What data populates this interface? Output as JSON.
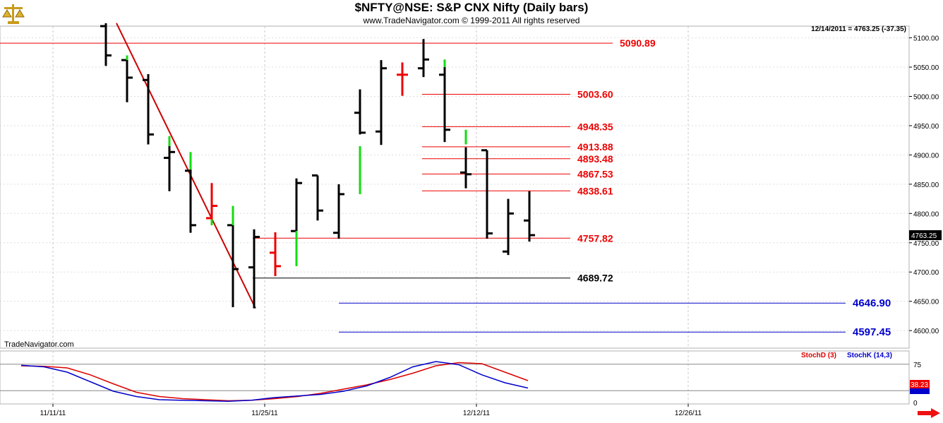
{
  "header": {
    "title": "$NFTY@NSE:  S&P CNX Nifty  (Daily bars)",
    "copyright": "www.TradeNavigator.com © 1999-2011 All rights reserved",
    "readout": "12/14/2011 = 4763.25 (-37.35)",
    "watermark": "TradeNavigator.com"
  },
  "chart_data": [
    {
      "type": "ohlc",
      "title": "$NFTY@NSE:  S&P CNX Nifty  (Daily bars)",
      "ylim": [
        4570,
        5120
      ],
      "y_ticks": [
        "5100.00",
        "5050.00",
        "5000.00",
        "4950.00",
        "4900.00",
        "4850.00",
        "4800.00",
        "4750.00",
        "4700.00",
        "4650.00",
        "4600.00"
      ],
      "y_tick_values": [
        5100,
        5050,
        5000,
        4950,
        4900,
        4850,
        4800,
        4750,
        4700,
        4650,
        4600
      ],
      "x_ticks": [
        "11/11/11",
        "11/25/11",
        "12/12/11",
        "12/26/11"
      ],
      "last_price_label": "4763.25",
      "bars": [
        {
          "o": 5120,
          "h": 5125,
          "l": 5052,
          "c": 5070,
          "color": "#000000"
        },
        {
          "o": 5062,
          "h": 5070,
          "l": 4990,
          "c": 5032,
          "color": "#000000"
        },
        {
          "o": 5028,
          "h": 5038,
          "l": 4918,
          "c": 4935,
          "color": "#000000"
        },
        {
          "o": 4895,
          "h": 4932,
          "l": 4838,
          "c": 4905,
          "color": "#000000"
        },
        {
          "o": 4873,
          "h": 4875,
          "l": 4767,
          "c": 4780,
          "color": "#000000"
        },
        {
          "o": 4792,
          "h": 4852,
          "l": 4780,
          "c": 4813,
          "color": "#ee0000"
        },
        {
          "o": 4780,
          "h": 4780,
          "l": 4640,
          "c": 4705,
          "color": "#000000"
        },
        {
          "o": 4708,
          "h": 4773,
          "l": 4638,
          "c": 4760,
          "color": "#000000"
        },
        {
          "o": 4733,
          "h": 4768,
          "l": 4693,
          "c": 4710,
          "color": "#ee0000"
        },
        {
          "o": 4770,
          "h": 4860,
          "l": 4770,
          "c": 4852,
          "color": "#000000"
        },
        {
          "o": 4865,
          "h": 4865,
          "l": 4788,
          "c": 4805,
          "color": "#000000"
        },
        {
          "o": 4767,
          "h": 4850,
          "l": 4757,
          "c": 4833,
          "color": "#000000"
        },
        {
          "o": 4972,
          "h": 5012,
          "l": 4935,
          "c": 4938,
          "color": "#000000"
        },
        {
          "o": 4940,
          "h": 5062,
          "l": 4917,
          "c": 5048,
          "color": "#000000"
        },
        {
          "o": 5037,
          "h": 5058,
          "l": 5001,
          "c": 5037,
          "color": "#ee0000"
        },
        {
          "o": 5048,
          "h": 5098,
          "l": 5033,
          "c": 5063,
          "color": "#000000"
        },
        {
          "o": 5037,
          "h": 5050,
          "l": 4922,
          "c": 4943,
          "color": "#000000"
        },
        {
          "o": 4870,
          "h": 4913,
          "l": 4843,
          "c": 4867,
          "color": "#000000"
        },
        {
          "o": 4908,
          "h": 4908,
          "l": 4757,
          "c": 4766,
          "color": "#000000"
        },
        {
          "o": 4735,
          "h": 4825,
          "l": 4729,
          "c": 4800,
          "color": "#000000"
        },
        {
          "o": 4788,
          "h": 4838,
          "l": 4752,
          "c": 4763,
          "color": "#000000"
        }
      ],
      "green_segments": [
        {
          "bar": 1,
          "from": 5062,
          "to": 5070
        },
        {
          "bar": 3,
          "from": 4915,
          "to": 4932
        },
        {
          "bar": 4,
          "from": 4875,
          "to": 4905
        },
        {
          "bar": 5,
          "from": 4780,
          "to": 4790
        },
        {
          "bar": 6,
          "from": 4780,
          "to": 4813
        },
        {
          "bar": 9,
          "from": 4710,
          "to": 4770
        },
        {
          "bar": 12,
          "from": 4833,
          "to": 4915
        },
        {
          "bar": 16,
          "from": 5050,
          "to": 5063
        },
        {
          "bar": 17,
          "from": 4918,
          "to": 4943
        }
      ],
      "levels": [
        {
          "value": 5090.89,
          "label": "5090.89",
          "color": "#ee0000",
          "span": "full"
        },
        {
          "value": 5003.6,
          "label": "5003.60",
          "color": "#ee0000",
          "span": "retracement"
        },
        {
          "value": 4948.35,
          "label": "4948.35",
          "color": "#ee0000",
          "span": "retracement"
        },
        {
          "value": 4913.88,
          "label": "4913.88",
          "color": "#ee0000",
          "span": "retracement"
        },
        {
          "value": 4893.48,
          "label": "4893.48",
          "color": "#ee0000",
          "span": "retracement"
        },
        {
          "value": 4867.53,
          "label": "4867.53",
          "color": "#ee0000",
          "span": "retracement"
        },
        {
          "value": 4838.61,
          "label": "4838.61",
          "color": "#ee0000",
          "span": "retracement"
        },
        {
          "value": 4757.82,
          "label": "4757.82",
          "color": "#ee0000",
          "span": "support"
        },
        {
          "value": 4689.72,
          "label": "4689.72",
          "color": "#000000",
          "span": "low"
        },
        {
          "value": 4646.9,
          "label": "4646.90",
          "color": "#0000cc",
          "span": "projection"
        },
        {
          "value": 4597.45,
          "label": "4597.45",
          "color": "#0000cc",
          "span": "projection"
        }
      ],
      "trendline": {
        "from_bar": 0,
        "from": 5125,
        "to_bar": 7,
        "to": 4638,
        "color": "#cc0000"
      },
      "grid": true
    },
    {
      "type": "line",
      "title": "Stochastic",
      "ylim": [
        0,
        100
      ],
      "y_ticks": [
        "75",
        "0"
      ],
      "levels": [
        75,
        25
      ],
      "legend": [
        "StochD (3)",
        "StochK (14,3)"
      ],
      "last_value_label": "38.23",
      "series": [
        {
          "name": "StochD (3)",
          "color": "#dd0000",
          "values": [
            72,
            71,
            68,
            55,
            38,
            22,
            14,
            10,
            8,
            6,
            7,
            10,
            14,
            20,
            28,
            36,
            46,
            58,
            72,
            78,
            76,
            60,
            44
          ]
        },
        {
          "name": "StochK (14,3)",
          "color": "#0000cc",
          "values": [
            73,
            70,
            60,
            42,
            24,
            14,
            8,
            7,
            6,
            5,
            7,
            12,
            15,
            18,
            24,
            34,
            50,
            70,
            80,
            74,
            55,
            40,
            30
          ]
        }
      ]
    }
  ]
}
